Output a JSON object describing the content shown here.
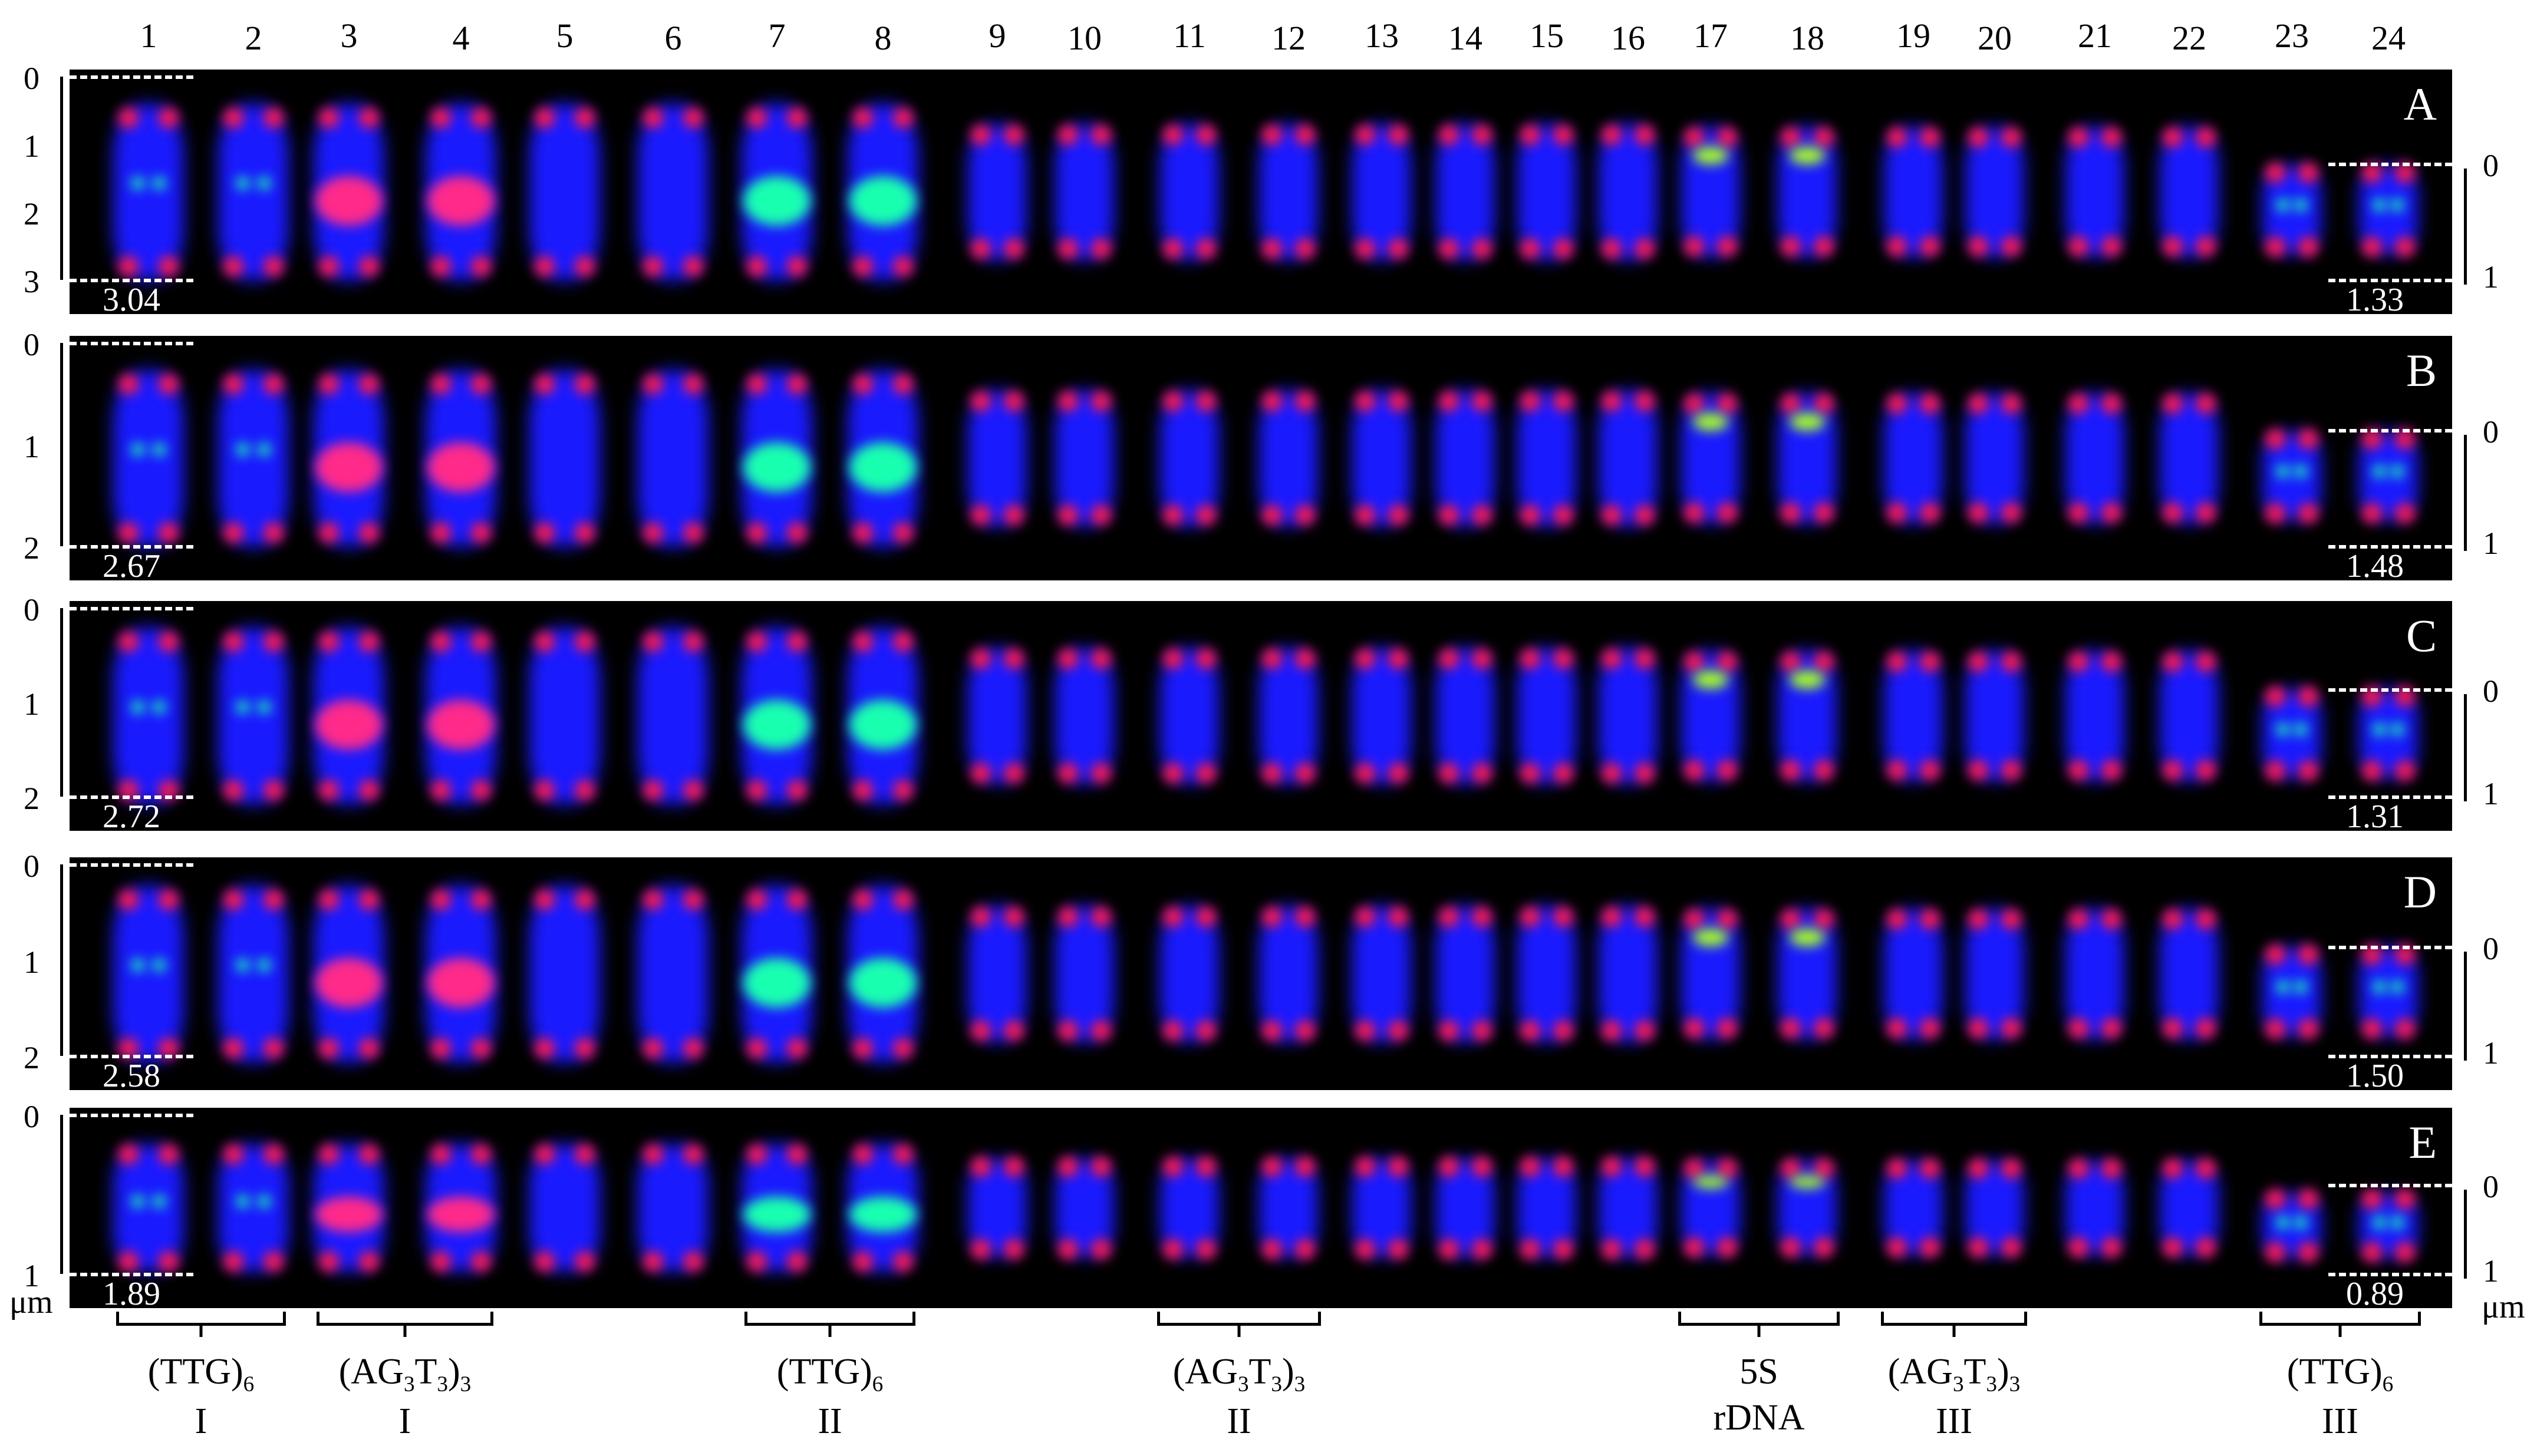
{
  "chromosome_numbers": [
    "1",
    "2",
    "3",
    "4",
    "5",
    "6",
    "7",
    "8",
    "9",
    "10",
    "11",
    "12",
    "13",
    "14",
    "15",
    "16",
    "17",
    "18",
    "19",
    "20",
    "21",
    "22",
    "23",
    "24"
  ],
  "panels": [
    {
      "letter": "A",
      "left_length": "3.04",
      "right_length": "1.33",
      "left_ticks": [
        "0",
        "1",
        "2",
        "3"
      ],
      "right_ticks": [
        "0",
        "1"
      ]
    },
    {
      "letter": "B",
      "left_length": "2.67",
      "right_length": "1.48",
      "left_ticks": [
        "0",
        "1",
        "2"
      ],
      "right_ticks": [
        "0",
        "1"
      ]
    },
    {
      "letter": "C",
      "left_length": "2.72",
      "right_length": "1.31",
      "left_ticks": [
        "0",
        "1",
        "2"
      ],
      "right_ticks": [
        "0",
        "1"
      ]
    },
    {
      "letter": "D",
      "left_length": "2.58",
      "right_length": "1.50",
      "left_ticks": [
        "0",
        "1",
        "2"
      ],
      "right_ticks": [
        "0",
        "1"
      ]
    },
    {
      "letter": "E",
      "left_length": "1.89",
      "right_length": "0.89",
      "left_ticks": [
        "0",
        "1"
      ],
      "right_ticks": [
        "0",
        "1"
      ]
    }
  ],
  "unit_left": "μm",
  "unit_right": "μm",
  "probe_groups": [
    {
      "probe_base": "(TTG)",
      "probe_sub": "6",
      "probe_tail": "",
      "probe_sub2": "",
      "group": "I"
    },
    {
      "probe_base": "(AG",
      "probe_sub": "3",
      "probe_tail": "T",
      "probe_sub2": "3",
      "probe_close": ")",
      "probe_sub3": "3",
      "group": "I"
    },
    {
      "probe_base": "(TTG)",
      "probe_sub": "6",
      "probe_tail": "",
      "probe_sub2": "",
      "group": "II"
    },
    {
      "probe_base": "(AG",
      "probe_sub": "3",
      "probe_tail": "T",
      "probe_sub2": "3",
      "probe_close": ")",
      "probe_sub3": "3",
      "group": "II"
    },
    {
      "probe_base": "5S",
      "probe_sub": "",
      "probe_tail": "",
      "probe_sub2": "",
      "group": "rDNA"
    },
    {
      "probe_base": "(AG",
      "probe_sub": "3",
      "probe_tail": "T",
      "probe_sub2": "3",
      "probe_close": ")",
      "probe_sub3": "3",
      "group": "III"
    },
    {
      "probe_base": "(TTG)",
      "probe_sub": "6",
      "probe_tail": "",
      "probe_sub2": "",
      "group": "III"
    }
  ],
  "colors": {
    "dapi": "#1a1aff",
    "telomere": "#ff1a55",
    "ttg": "#19ffb0",
    "ag3t3": "#ff2a8a",
    "rdna5s": "#a8ff2a",
    "background": "#000000"
  }
}
